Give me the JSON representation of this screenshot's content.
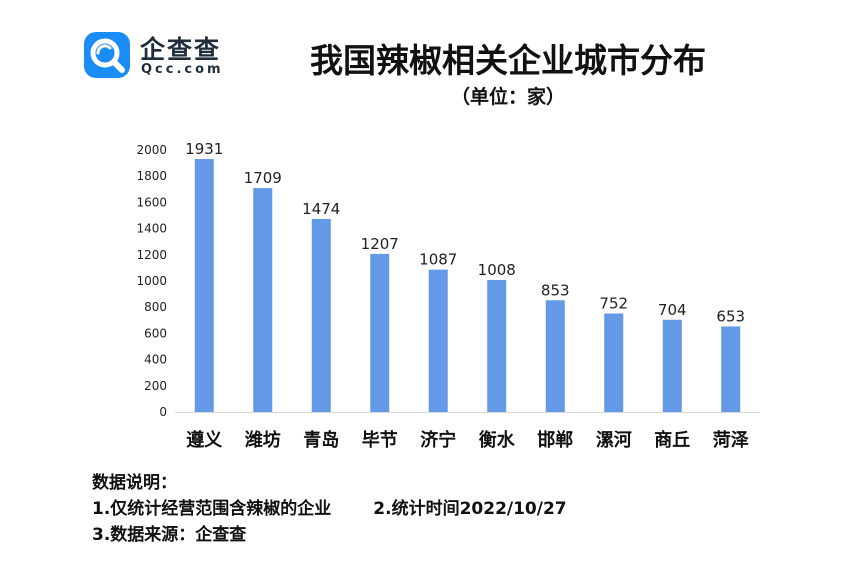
{
  "logo": {
    "cn": "企查查",
    "en": "Qcc.com"
  },
  "title": "我国辣椒相关企业城市分布",
  "subtitle": "（单位：家）",
  "colors": {
    "bar": "#6399e6",
    "axis": "#d9d9d9",
    "logo": "#1a8cf5"
  },
  "chart_data": {
    "type": "bar",
    "title": "我国辣椒相关企业城市分布",
    "subtitle": "（单位：家）",
    "categories": [
      "遵义",
      "潍坊",
      "青岛",
      "毕节",
      "济宁",
      "衡水",
      "邯郸",
      "漯河",
      "商丘",
      "菏泽"
    ],
    "values": [
      1931,
      1709,
      1474,
      1207,
      1087,
      1008,
      853,
      752,
      704,
      653
    ],
    "ylim": [
      0,
      2000
    ],
    "yticks": [
      0,
      200,
      400,
      600,
      800,
      1000,
      1200,
      1400,
      1600,
      1800,
      2000
    ],
    "grid": false,
    "legend": "none",
    "data_labels": true
  },
  "notes": {
    "heading": "数据说明：",
    "line1a": "1.仅统计经营范围含辣椒的企业",
    "line1b": "2.统计时间2022/10/27",
    "line2": "3.数据来源：企查查"
  }
}
